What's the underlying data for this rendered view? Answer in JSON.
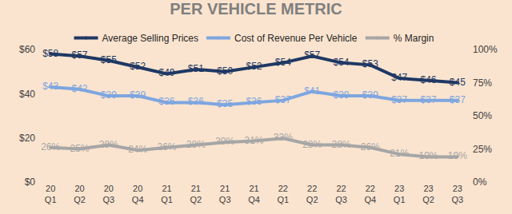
{
  "chart_data": {
    "type": "line",
    "title": "PER VEHICLE METRIC",
    "categories": [
      "20\nQ1",
      "20\nQ2",
      "20\nQ3",
      "20\nQ4",
      "21\nQ1",
      "21\nQ2",
      "21\nQ3",
      "21\nQ4",
      "22\nQ1",
      "22\nQ2",
      "22\nQ3",
      "22\nQ4",
      "23\nQ1",
      "23\nQ2",
      "23\nQ3"
    ],
    "series": [
      {
        "name": "Average Selling Prices",
        "color": "#1f3864",
        "marker": "circle",
        "values": [
          58,
          57,
          55,
          52,
          49,
          51,
          50,
          52,
          54,
          57,
          54,
          53,
          47,
          46,
          45
        ],
        "value_labels": [
          "$58",
          "$57",
          "$55",
          "$52",
          "$49",
          "$51",
          "$50",
          "$52",
          "$54",
          "$57",
          "$54",
          "$53",
          "$47",
          "$46",
          "$45"
        ]
      },
      {
        "name": "Cost of Revenue Per Vehicle",
        "color": "#7ea6e0",
        "marker": "circle",
        "values": [
          43,
          42,
          39,
          39,
          36,
          36,
          35,
          36,
          37,
          41,
          39,
          39,
          37,
          37,
          37
        ],
        "value_labels": [
          "$43",
          "$42",
          "$39",
          "$39",
          "$36",
          "$36",
          "$35",
          "$36",
          "$37",
          "$41",
          "$39",
          "$39",
          "$37",
          "$37",
          "$37"
        ]
      },
      {
        "name": "% Margin",
        "color": "#a6a6a6",
        "marker": "circle",
        "axis": "y2",
        "values": [
          26,
          25,
          28,
          24,
          26,
          28,
          30,
          31,
          33,
          28,
          28,
          26,
          21,
          19,
          19
        ],
        "value_labels": [
          "26%",
          "25%",
          "28%",
          "24%",
          "26%",
          "28%",
          "30%",
          "31%",
          "33%",
          "28%",
          "28%",
          "26%",
          "21%",
          "19%",
          "19%"
        ]
      }
    ],
    "ylim": [
      0,
      60
    ],
    "yticks": [
      {
        "value": 0,
        "label": "$0"
      },
      {
        "value": 20,
        "label": "$20"
      },
      {
        "value": 40,
        "label": "$40"
      },
      {
        "value": 60,
        "label": "$60"
      }
    ],
    "y2lim": [
      0,
      100
    ],
    "y2ticks": [
      {
        "value": 0,
        "label": "0%"
      },
      {
        "value": 25,
        "label": "25%"
      },
      {
        "value": 50,
        "label": "50%"
      },
      {
        "value": 75,
        "label": "75%"
      },
      {
        "value": 100,
        "label": "100%"
      }
    ],
    "data_labels": true,
    "legend": "top",
    "grid": false
  }
}
